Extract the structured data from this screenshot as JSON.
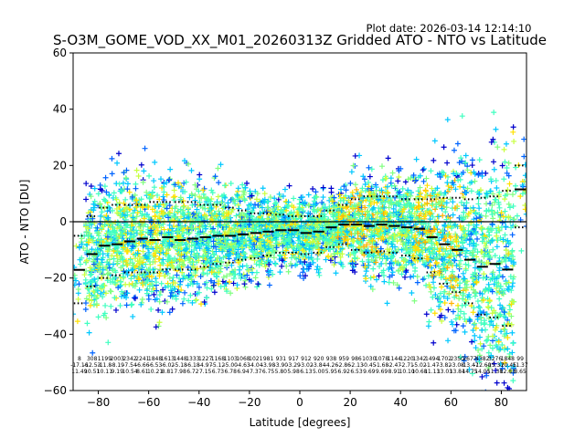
{
  "chart_data": {
    "type": "scatter",
    "title": "S-O3M_GOME_VOD_XX_M01_20260313Z Gridded ATO - NTO vs Latitude",
    "plot_date": "Plot date: 2026-03-14 12:14:10",
    "xlabel": "Latitude [degrees]",
    "ylabel": "ATO - NTO [DU]",
    "xlim": [
      -90,
      90
    ],
    "ylim": [
      -60,
      60
    ],
    "xticks": [
      -80,
      -60,
      -40,
      -20,
      0,
      20,
      40,
      60,
      80
    ],
    "yticks": [
      -60,
      -40,
      -20,
      0,
      20,
      40,
      60
    ],
    "xtick_labels": [
      "−80",
      "−60",
      "−40",
      "−20",
      "0",
      "20",
      "40",
      "60",
      "80"
    ],
    "ytick_labels": [
      "−60",
      "−40",
      "−20",
      "0",
      "20",
      "40",
      "60"
    ],
    "zero_line": 0,
    "marker": "+",
    "colormap": [
      "#0000cd",
      "#0064ff",
      "#00c8ff",
      "#40ffc0",
      "#80ff80",
      "#c8ff40",
      "#ffe000",
      "#ffb000"
    ],
    "lat_bins": [
      -87.5,
      -82.5,
      -77.5,
      -72.5,
      -67.5,
      -62.5,
      -57.5,
      -52.5,
      -47.5,
      -42.5,
      -37.5,
      -32.5,
      -27.5,
      -22.5,
      -17.5,
      -12.5,
      -7.5,
      -2.5,
      2.5,
      7.5,
      12.5,
      17.5,
      22.5,
      27.5,
      32.5,
      37.5,
      42.5,
      47.5,
      52.5,
      57.5,
      62.5,
      67.5,
      72.5,
      77.5,
      82.5,
      87.5
    ],
    "mean_diff": [
      -17.1,
      -11.5,
      -8.5,
      -8.0,
      -7.0,
      -6.0,
      -6.5,
      -5.5,
      -6.5,
      -6.0,
      -5.5,
      -5.0,
      -5.0,
      -4.5,
      -4.0,
      -3.5,
      -3.0,
      -3.0,
      -4.0,
      -3.5,
      -2.0,
      -1.0,
      -1.0,
      -1.5,
      -1.0,
      -1.5,
      -2.0,
      -2.5,
      -5.5,
      -8.0,
      -10.0,
      -13.5,
      -16.0,
      -15.0,
      -17.0,
      11.5
    ],
    "std_upper": [
      -5.0,
      2.0,
      5.0,
      6.0,
      6.0,
      6.0,
      7.0,
      7.0,
      7.0,
      7.0,
      6.0,
      6.0,
      5.0,
      4.0,
      3.0,
      3.0,
      2.5,
      2.0,
      2.0,
      2.0,
      4.0,
      6.0,
      8.0,
      9.0,
      9.0,
      9.0,
      8.0,
      8.0,
      8.0,
      8.5,
      8.5,
      8.0,
      8.5,
      9.0,
      11.0,
      20.0
    ],
    "std_lower": [
      -29.0,
      -23.0,
      -20.0,
      -19.0,
      -18.0,
      -18.0,
      -18.0,
      -17.0,
      -17.0,
      -17.0,
      -16.0,
      -15.0,
      -14.5,
      -13.5,
      -13.0,
      -12.0,
      -11.0,
      -11.0,
      -11.5,
      -11.0,
      -9.0,
      -8.0,
      -10.0,
      -11.0,
      -10.5,
      -11.0,
      -12.0,
      -13.0,
      -18.0,
      -22.0,
      -25.0,
      -29.0,
      -33.0,
      -34.0,
      -37.0,
      -2.0
    ],
    "stats_rows": [
      [
        "8",
        "308",
        "1199",
        "2003",
        "2342",
        "2241",
        "1848",
        "1613",
        "1448",
        "1333",
        "1227",
        "1168",
        "1103",
        "1068",
        "1021",
        "981",
        "931",
        "917",
        "912",
        "920",
        "938",
        "959",
        "986",
        "1030",
        "1078",
        "1144",
        "1220",
        "1342",
        "1494",
        "1702",
        "2350",
        "2677",
        "4382",
        "3276",
        "1848",
        "99"
      ],
      [
        "-17.16",
        "-12.53",
        "-11.8",
        "-8.19",
        "-7.54",
        "-6.66",
        "-6.53",
        "-6.02",
        "-5.18",
        "-6.18",
        "-4.97",
        "-5.12",
        "-5.00",
        "-4.63",
        "-4.04",
        "-3.98",
        "-3.90",
        "-3.29",
        "-3.02",
        "-3.84",
        "-4.26",
        "-2.86",
        "-2.13",
        "-0.45",
        "-1.68",
        "-2.47",
        "-2.71",
        "-5.02",
        "-1.47",
        "-3.82",
        "-3.08",
        "-13.47",
        "-12.60",
        "-15.37",
        "-20.45",
        "11.37"
      ],
      [
        "11.49",
        "10.51",
        "10.11",
        "9.19",
        "10.54",
        "8.61",
        "10.21",
        "8.81",
        "7.98",
        "6.72",
        "7.15",
        "6.73",
        "6.78",
        "6.94",
        "7.37",
        "6.75",
        "5.80",
        "5.98",
        "6.13",
        "5.00",
        "5.95",
        "6.92",
        "6.53",
        "9.69",
        "9.69",
        "8.91",
        "10.10",
        "10.68",
        "11.13",
        "13.03",
        "13.84",
        "14.75",
        "14.05",
        "11.38",
        "12.83",
        "8.65"
      ]
    ]
  }
}
